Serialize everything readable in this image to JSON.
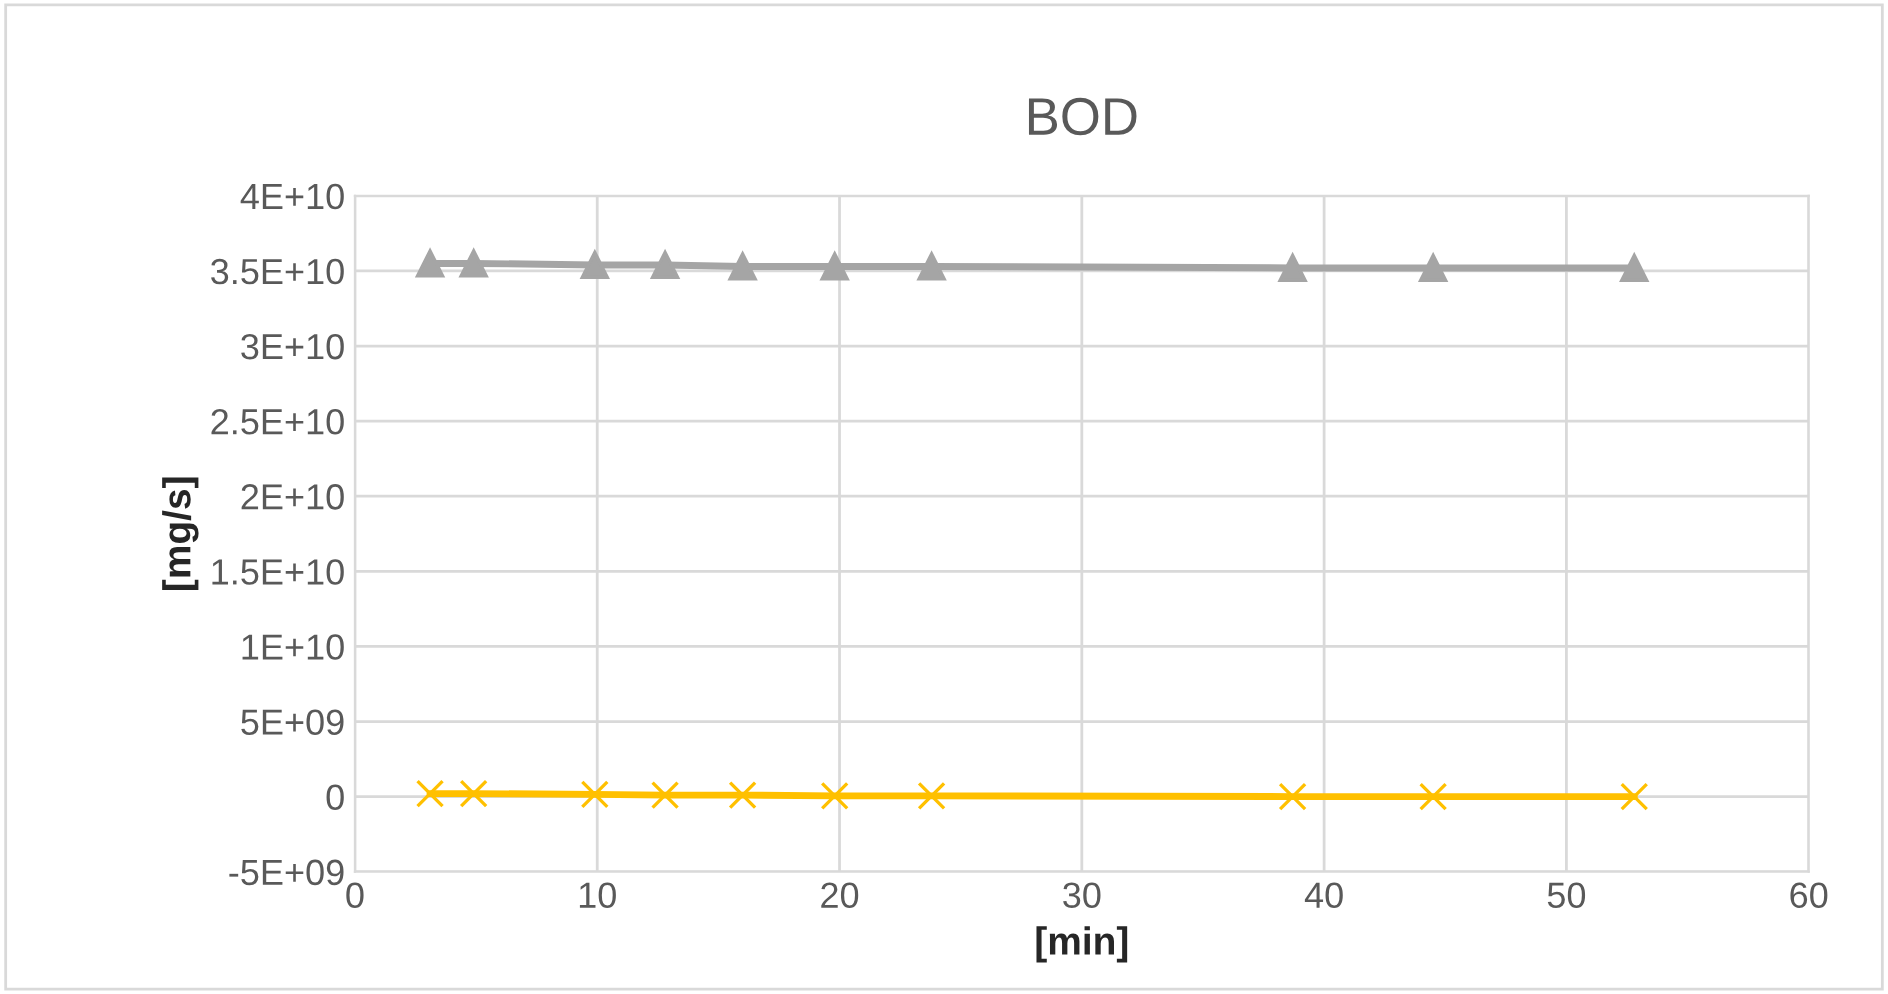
{
  "chart_data": {
    "type": "line",
    "title": "BOD",
    "xlabel": "[min]",
    "ylabel": "[mg/s]",
    "x": [
      3.1,
      4.9,
      9.9,
      12.8,
      16.0,
      19.8,
      23.8,
      38.7,
      44.5,
      52.8
    ],
    "series": [
      {
        "color": "#a5a5a5",
        "marker": "triangle",
        "values": [
          35500000000.0,
          35500000000.0,
          35400000000.0,
          35400000000.0,
          35300000000.0,
          35300000000.0,
          35300000000.0,
          35200000000.0,
          35200000000.0,
          35200000000.0
        ]
      },
      {
        "color": "#ffc000",
        "marker": "cross",
        "values": [
          200000000.0,
          200000000.0,
          150000000.0,
          100000000.0,
          100000000.0,
          50000000.0,
          50000000.0,
          0,
          0,
          0
        ]
      }
    ],
    "xlim": [
      0,
      60
    ],
    "xticks": [
      0,
      10,
      20,
      30,
      40,
      50,
      60
    ],
    "ylim": [
      -5000000000.0,
      40000000000.0
    ],
    "yticks": [
      {
        "value": -5000000000.0,
        "label": "-5E+09"
      },
      0,
      {
        "value": 5000000000.0,
        "label": "5E+09"
      },
      {
        "value": 10000000000.0,
        "label": "1E+10"
      },
      {
        "value": 15000000000.0,
        "label": "1.5E+10"
      },
      {
        "value": 20000000000.0,
        "label": "2E+10"
      },
      {
        "value": 25000000000.0,
        "label": "2.5E+10"
      },
      {
        "value": 30000000000.0,
        "label": "3E+10"
      },
      {
        "value": 35000000000.0,
        "label": "3.5E+10"
      },
      {
        "value": 40000000000.0,
        "label": "4E+10"
      }
    ],
    "grid": true,
    "legend": false,
    "line_style": "solid"
  }
}
